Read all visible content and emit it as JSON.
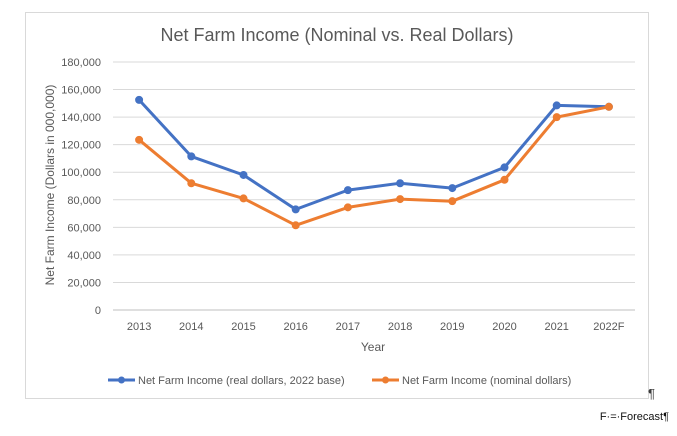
{
  "chart_data": {
    "type": "line",
    "title": "Net Farm Income (Nominal vs. Real Dollars)",
    "xlabel": "Year",
    "ylabel": "Net Farm Income (Dollars in 000,000)",
    "categories": [
      "2013",
      "2014",
      "2015",
      "2016",
      "2017",
      "2018",
      "2019",
      "2020",
      "2021",
      "2022F"
    ],
    "y_ticks": [
      "0",
      "20,000",
      "40,000",
      "60,000",
      "80,000",
      "100,000",
      "120,000",
      "140,000",
      "160,000",
      "180,000"
    ],
    "ylim": [
      0,
      180000
    ],
    "grid": true,
    "legend_position": "bottom",
    "series": [
      {
        "name": "Net Farm Income (real dollars, 2022 base)",
        "color": "#4472c4",
        "values": [
          152500,
          111500,
          98000,
          73000,
          87000,
          92000,
          88500,
          103500,
          148500,
          147500
        ]
      },
      {
        "name": "Net Farm Income (nominal dollars)",
        "color": "#ed7d31",
        "values": [
          123500,
          92000,
          81000,
          61500,
          74500,
          80500,
          79000,
          94500,
          140000,
          147500
        ]
      }
    ]
  },
  "pilcrow": "¶",
  "footnote": "F·=·Forecast¶"
}
